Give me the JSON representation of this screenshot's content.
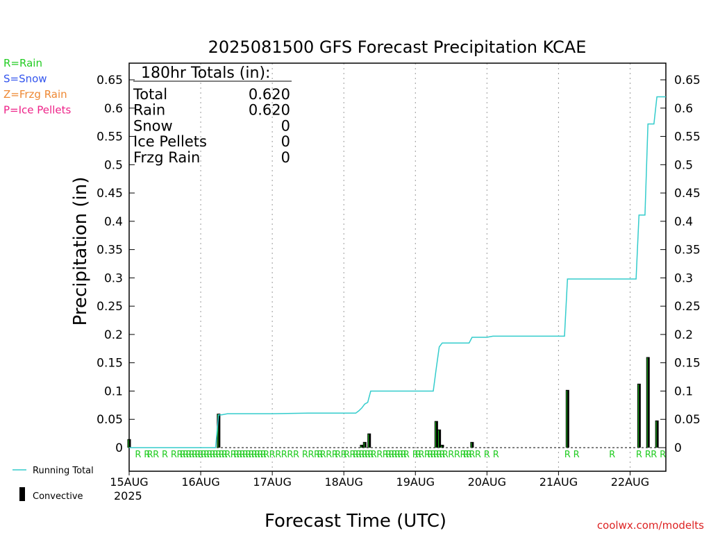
{
  "chart_data": {
    "type": "bar",
    "title": "2025081500 GFS Forecast Precipitation KCAE",
    "xlabel": "Forecast Time (UTC)",
    "ylabel": "Precipitation (in)",
    "watermark": "coolwx.com/modelts",
    "x_range_hours": [
      0,
      180
    ],
    "ylim": [
      0,
      0.68
    ],
    "y_ticks": [
      0,
      0.05,
      0.1,
      0.15,
      0.2,
      0.25,
      0.3,
      0.35,
      0.4,
      0.45,
      0.5,
      0.55,
      0.6,
      0.65
    ],
    "y_tick_labels": [
      "0",
      "0.05",
      "0.1",
      "0.15",
      "0.2",
      "0.25",
      "0.3",
      "0.35",
      "0.4",
      "0.45",
      "0.5",
      "0.55",
      "0.6",
      "0.65"
    ],
    "x_ticks": [
      {
        "hour": 0,
        "label": "15AUG",
        "sublabel": "2025"
      },
      {
        "hour": 24,
        "label": "16AUG"
      },
      {
        "hour": 48,
        "label": "17AUG"
      },
      {
        "hour": 72,
        "label": "18AUG"
      },
      {
        "hour": 96,
        "label": "19AUG"
      },
      {
        "hour": 120,
        "label": "20AUG"
      },
      {
        "hour": 144,
        "label": "21AUG"
      },
      {
        "hour": 168,
        "label": "22AUG"
      }
    ],
    "key": [
      {
        "text": "R=Rain",
        "color": "#22cc22"
      },
      {
        "text": "S=Snow",
        "color": "#3355ee"
      },
      {
        "text": "Z=Frzg Rain",
        "color": "#ee8833"
      },
      {
        "text": "P=Ice Pellets",
        "color": "#ee2288"
      }
    ],
    "legend": [
      {
        "text": "Running Total",
        "color": "#33cccc"
      },
      {
        "text": "Convective",
        "color": "#000000"
      }
    ],
    "totals": {
      "heading": "180hr Totals (in):",
      "rows": [
        {
          "label": "Total",
          "value": "0.620"
        },
        {
          "label": "Rain",
          "value": "0.620"
        },
        {
          "label": "Snow",
          "value": "0"
        },
        {
          "label": "Ice Pellets",
          "value": "0"
        },
        {
          "label": "Frzg Rain",
          "value": "0"
        }
      ]
    },
    "series": [
      {
        "name": "Precipitation",
        "kind": "bars",
        "color": "#000000",
        "points": [
          {
            "x": 0,
            "y": 0.015
          },
          {
            "x": 30,
            "y": 0.06
          },
          {
            "x": 78,
            "y": 0.005
          },
          {
            "x": 79,
            "y": 0.01
          },
          {
            "x": 80.5,
            "y": 0.025
          },
          {
            "x": 103,
            "y": 0.047
          },
          {
            "x": 104,
            "y": 0.032
          },
          {
            "x": 105,
            "y": 0.005
          },
          {
            "x": 115,
            "y": 0.01
          },
          {
            "x": 147,
            "y": 0.102
          },
          {
            "x": 171,
            "y": 0.113
          },
          {
            "x": 174,
            "y": 0.16
          },
          {
            "x": 177,
            "y": 0.048
          }
        ]
      },
      {
        "name": "Running Total",
        "kind": "line",
        "color": "#33cccc",
        "points": [
          {
            "x": 0,
            "y": 0.0
          },
          {
            "x": 29,
            "y": 0.0
          },
          {
            "x": 30,
            "y": 0.058
          },
          {
            "x": 31,
            "y": 0.058
          },
          {
            "x": 33,
            "y": 0.06
          },
          {
            "x": 40,
            "y": 0.06
          },
          {
            "x": 48,
            "y": 0.06
          },
          {
            "x": 60,
            "y": 0.061
          },
          {
            "x": 72,
            "y": 0.061
          },
          {
            "x": 76,
            "y": 0.061
          },
          {
            "x": 77,
            "y": 0.065
          },
          {
            "x": 78,
            "y": 0.07
          },
          {
            "x": 79,
            "y": 0.077
          },
          {
            "x": 80,
            "y": 0.08
          },
          {
            "x": 81,
            "y": 0.1
          },
          {
            "x": 90,
            "y": 0.1
          },
          {
            "x": 96,
            "y": 0.1
          },
          {
            "x": 102,
            "y": 0.1
          },
          {
            "x": 103,
            "y": 0.14
          },
          {
            "x": 104,
            "y": 0.178
          },
          {
            "x": 105,
            "y": 0.185
          },
          {
            "x": 114,
            "y": 0.185
          },
          {
            "x": 115,
            "y": 0.195
          },
          {
            "x": 120,
            "y": 0.195
          },
          {
            "x": 122,
            "y": 0.197
          },
          {
            "x": 146,
            "y": 0.197
          },
          {
            "x": 147,
            "y": 0.298
          },
          {
            "x": 170,
            "y": 0.298
          },
          {
            "x": 171,
            "y": 0.411
          },
          {
            "x": 173,
            "y": 0.411
          },
          {
            "x": 174,
            "y": 0.572
          },
          {
            "x": 176,
            "y": 0.572
          },
          {
            "x": 177,
            "y": 0.62
          },
          {
            "x": 180,
            "y": 0.62
          }
        ]
      }
    ],
    "precip_type_marks": {
      "char": "R",
      "color": "#22cc22",
      "hours": [
        3,
        6,
        7,
        9,
        12,
        15,
        17,
        18,
        19,
        20,
        21,
        22,
        23,
        24,
        25,
        26,
        27,
        28,
        29,
        30,
        31,
        32,
        33,
        35,
        36,
        37,
        38,
        39,
        40,
        41,
        42,
        43,
        44,
        45,
        46,
        48,
        50,
        52,
        54,
        56,
        59,
        61,
        63,
        64,
        65,
        67,
        69,
        70,
        72,
        73,
        75,
        76,
        77,
        78,
        79,
        80,
        81,
        82,
        84,
        86,
        87,
        88,
        89,
        90,
        91,
        92,
        93,
        96,
        97,
        98,
        100,
        101,
        102,
        103,
        104,
        105,
        106,
        108,
        110,
        112,
        113,
        114,
        115,
        117,
        120,
        123,
        147,
        150,
        162,
        171,
        174,
        176,
        179
      ]
    }
  }
}
